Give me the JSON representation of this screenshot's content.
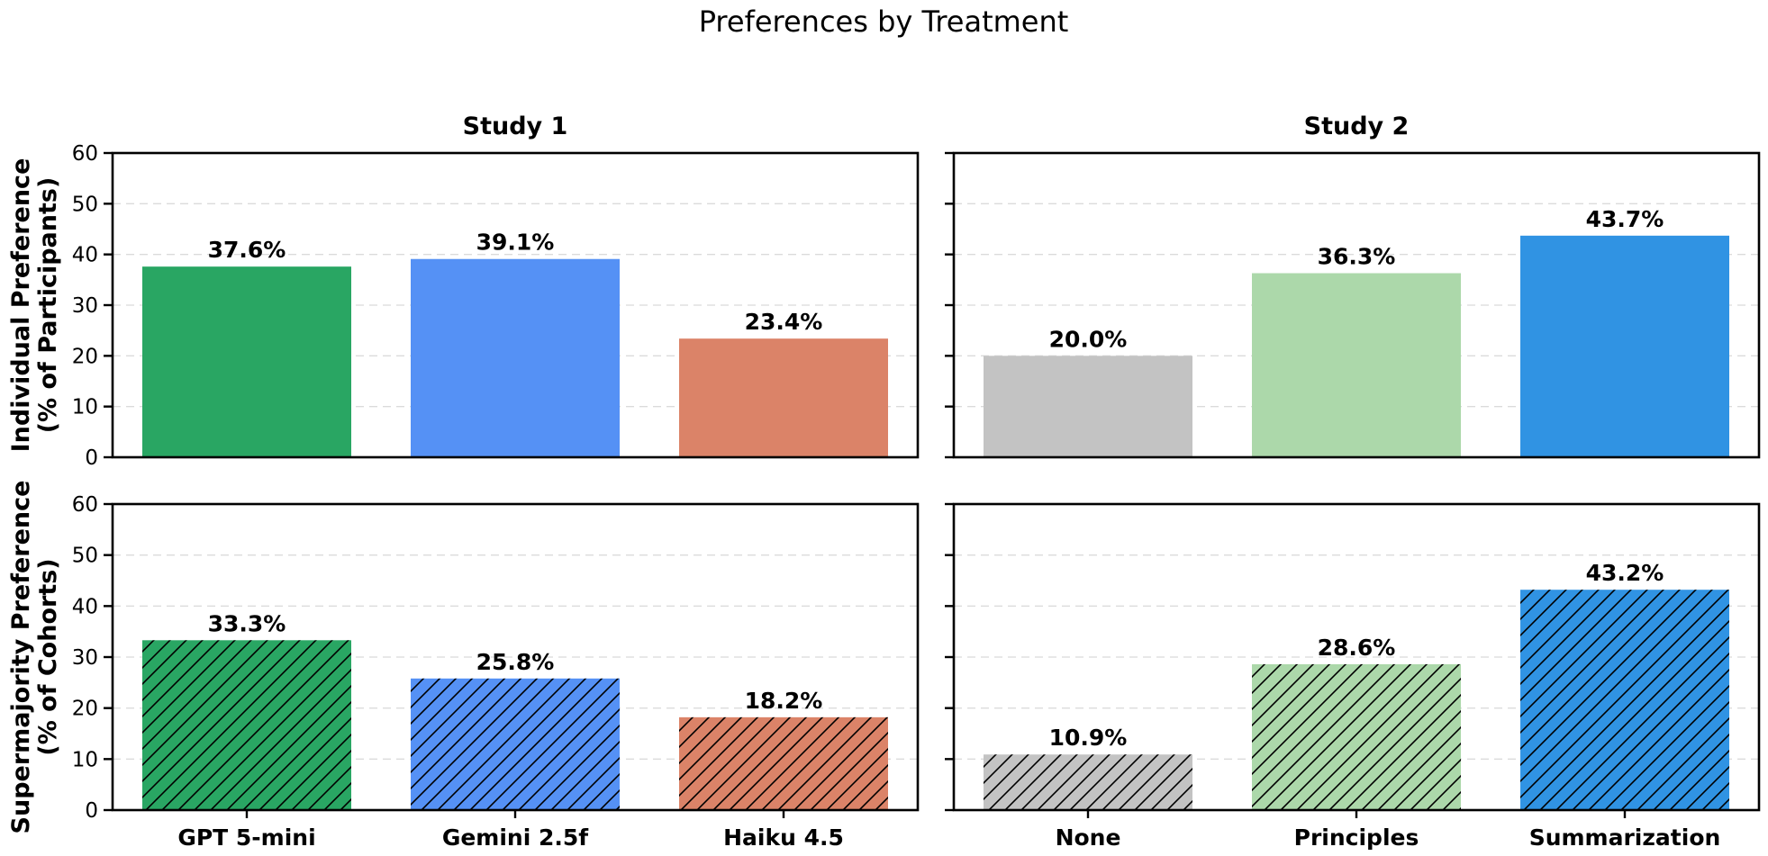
{
  "title": "Preferences by Treatment",
  "chart_data": {
    "type": "bar",
    "layout": {
      "rows": 2,
      "cols": 2,
      "shared_y": true
    },
    "ylim": [
      0,
      60
    ],
    "yticks": [
      0,
      10,
      20,
      30,
      40,
      50,
      60
    ],
    "grid": "y-dashed",
    "columns": [
      {
        "title": "Study 1",
        "categories": [
          "GPT 5-mini",
          "Gemini 2.5f",
          "Haiku 4.5"
        ],
        "colors": [
          "#29a663",
          "#5591f5",
          "#db8368"
        ]
      },
      {
        "title": "Study 2",
        "categories": [
          "None",
          "Principles",
          "Summarization"
        ],
        "colors": [
          "#c3c3c3",
          "#acd8aa",
          "#3093e3"
        ]
      }
    ],
    "rows": [
      {
        "ylabel_line1": "Individual Preference",
        "ylabel_line2": "(% of Participants)",
        "hatched": false,
        "panels": [
          {
            "values": [
              37.6,
              39.1,
              23.4
            ],
            "labels": [
              "37.6%",
              "39.1%",
              "23.4%"
            ]
          },
          {
            "values": [
              20.0,
              36.3,
              43.7
            ],
            "labels": [
              "20.0%",
              "36.3%",
              "43.7%"
            ]
          }
        ]
      },
      {
        "ylabel_line1": "Supermajority Preference",
        "ylabel_line2": "(% of Cohorts)",
        "hatched": true,
        "panels": [
          {
            "values": [
              33.3,
              25.8,
              18.2
            ],
            "labels": [
              "33.3%",
              "25.8%",
              "18.2%"
            ]
          },
          {
            "values": [
              10.9,
              28.6,
              43.2
            ],
            "labels": [
              "10.9%",
              "28.6%",
              "43.2%"
            ]
          }
        ]
      }
    ]
  }
}
